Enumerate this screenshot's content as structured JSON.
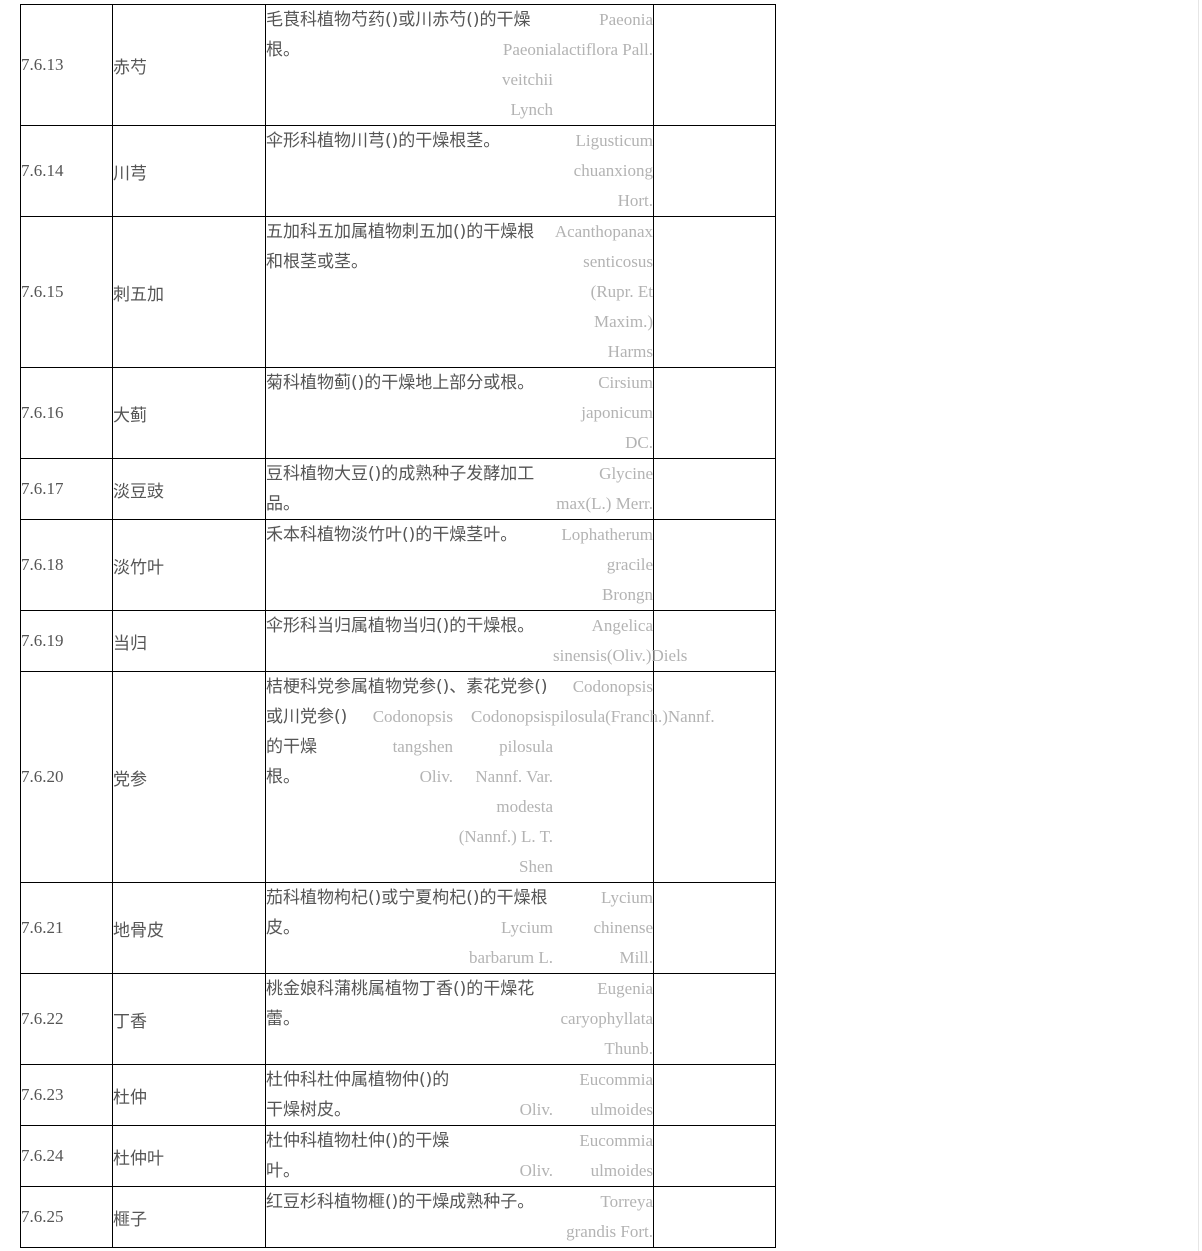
{
  "rows": [
    {
      "code": "7.6.13",
      "name": "赤芍",
      "desc": [
        "毛茛科植物芍药()或川赤芍()的干燥",
        "根。"
      ],
      "latin": [
        [
          "Paeonia",
          "Paeonialactiflora Pall."
        ],
        [
          "veitchii",
          "Lynch"
        ]
      ]
    },
    {
      "code": "7.6.14",
      "name": "川芎",
      "desc": [
        "伞形科植物川芎()的干燥根茎。"
      ],
      "latin": [
        [
          "Ligusticum",
          "chuanxiong",
          "Hort."
        ]
      ]
    },
    {
      "code": "7.6.15",
      "name": "刺五加",
      "desc": [
        "五加科五加属植物刺五加()的干燥根",
        "和根茎或茎。"
      ],
      "latin": [
        [
          "Acanthopanax",
          "senticosus",
          "(Rupr. Et",
          "Maxim.)",
          "Harms"
        ]
      ]
    },
    {
      "code": "7.6.16",
      "name": "大蓟",
      "desc": [
        "菊科植物蓟()的干燥地上部分或根。"
      ],
      "latin": [
        [
          "Cirsium",
          "japonicum",
          "DC."
        ]
      ]
    },
    {
      "code": "7.6.17",
      "name": "淡豆豉",
      "desc": [
        "豆科植物大豆()的成熟种子发酵加工",
        "品。"
      ],
      "latin": [
        [
          "Glycine",
          "max(L.) Merr."
        ]
      ]
    },
    {
      "code": "7.6.18",
      "name": "淡竹叶",
      "desc": [
        "禾本科植物淡竹叶()的干燥茎叶。"
      ],
      "latin": [
        [
          "Lophatherum",
          "gracile",
          "Brongn"
        ]
      ]
    },
    {
      "code": "7.6.19",
      "name": "当归",
      "desc": [
        "伞形科当归属植物当归()的干燥根。"
      ],
      "latin": [
        [
          "Angelica"
        ],
        [
          "sinensis(Oliv.)Diels"
        ]
      ]
    },
    {
      "code": "7.6.20",
      "name": "党参",
      "desc": [
        "桔梗科党参属植物党参()、素花党参()",
        "或川党参()",
        "的干燥",
        "根。"
      ],
      "latin": [
        [
          "Codonopsis"
        ],
        [
          "Codonopsispilosula(Franch.)Nannf."
        ],
        [
          "Codonopsis",
          "tangshen",
          "Oliv."
        ],
        [
          "pilosula",
          "Nannf. Var.",
          "modesta",
          "(Nannf.) L. T.",
          "Shen"
        ]
      ]
    },
    {
      "code": "7.6.21",
      "name": "地骨皮",
      "desc": [
        "茄科植物枸杞()或宁夏枸杞()的干燥根",
        "皮。"
      ],
      "latin": [
        [
          "Lycium",
          "chinense",
          "Mill."
        ],
        [
          "Lycium",
          "barbarum L."
        ]
      ]
    },
    {
      "code": "7.6.22",
      "name": "丁香",
      "desc": [
        "桃金娘科蒲桃属植物丁香()的干燥花",
        "蕾。"
      ],
      "latin": [
        [
          "Eugenia",
          "caryophyllata",
          "Thunb."
        ]
      ]
    },
    {
      "code": "7.6.23",
      "name": "杜仲",
      "desc": [
        "杜仲科杜仲属植物仲()的",
        "干燥树皮。"
      ],
      "latin": [
        [
          "Eucommia",
          "ulmoides"
        ],
        [
          "Oliv."
        ]
      ]
    },
    {
      "code": "7.6.24",
      "name": "杜仲叶",
      "desc": [
        "杜仲科植物杜仲()的干燥",
        "叶。"
      ],
      "latin": [
        [
          "Eucommia",
          "ulmoides"
        ],
        [
          "Oliv."
        ]
      ]
    },
    {
      "code": "7.6.25",
      "name": "榧子",
      "desc": [
        "红豆杉科植物榧()的干燥成熟种子。"
      ],
      "latin": [
        [
          "Torreya",
          "grandis Fort."
        ]
      ]
    }
  ]
}
